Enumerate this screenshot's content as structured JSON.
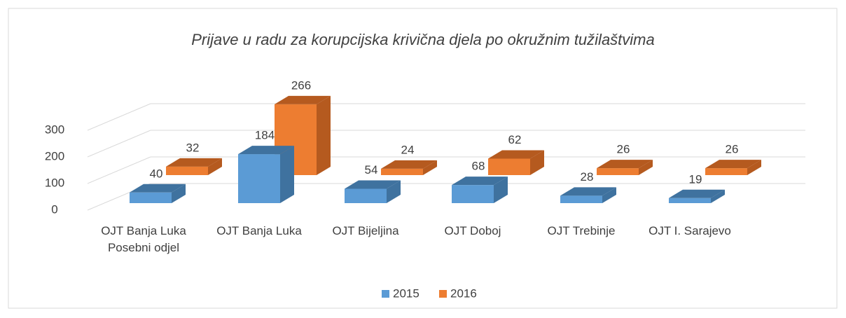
{
  "chart_data": {
    "type": "bar3d",
    "title": "Prijave u radu za korupcijska krivična djela po okružnim tužilaštvima",
    "categories": [
      "OJT Banja Luka Posebni odjel",
      "OJT Banja Luka",
      "OJT Bijeljina",
      "OJT Doboj",
      "OJT Trebinje",
      "OJT I. Sarajevo"
    ],
    "series": [
      {
        "name": "2015",
        "color": "#5b9bd5",
        "side": "#3f729f",
        "values": [
          40,
          184,
          54,
          68,
          28,
          19
        ]
      },
      {
        "name": "2016",
        "color": "#ed7d31",
        "side": "#b55a1f",
        "values": [
          32,
          266,
          24,
          62,
          26,
          26
        ]
      }
    ],
    "ylim": [
      0,
      300
    ],
    "yticks": [
      0,
      100,
      200,
      300
    ],
    "grid": true,
    "legend": "bottom"
  }
}
